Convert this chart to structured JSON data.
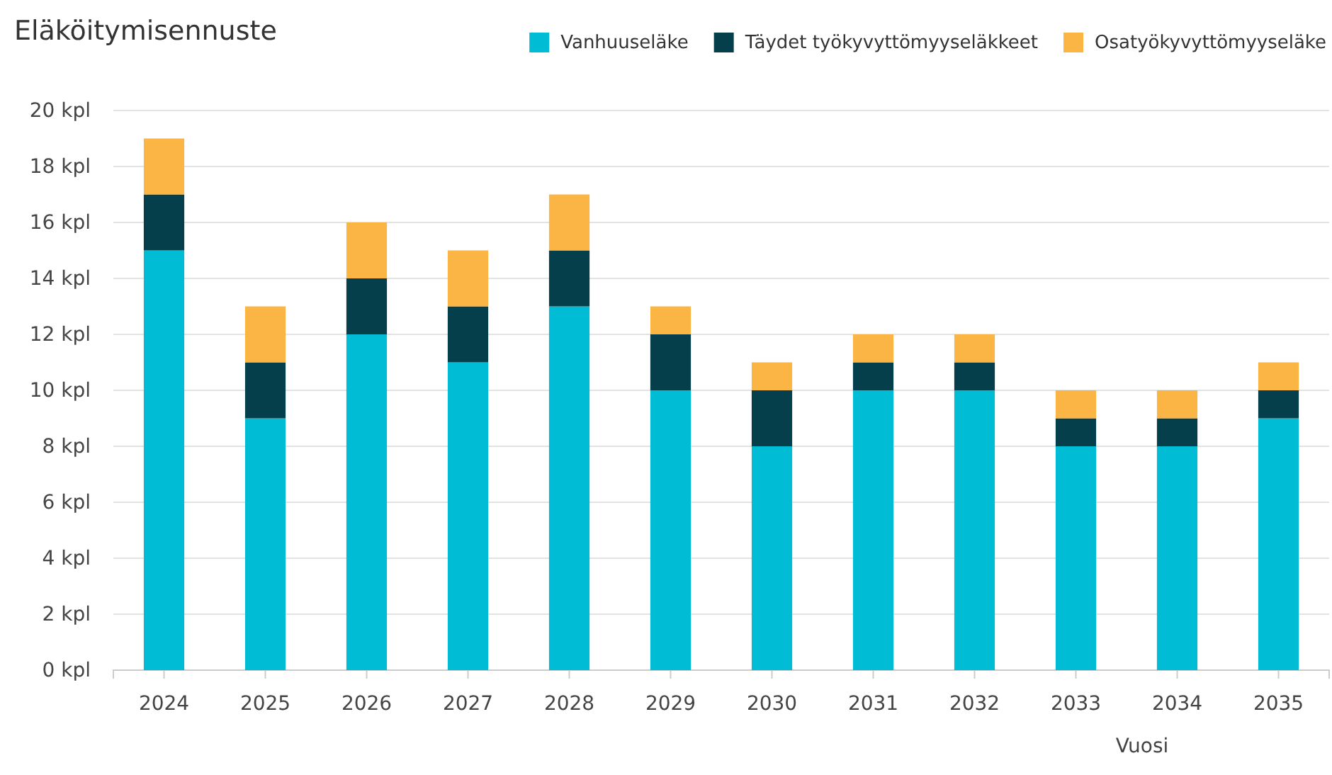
{
  "chart_data": {
    "type": "bar",
    "title": "Eläköitymisennuste",
    "xlabel": "Vuosi",
    "stacked": true,
    "grid": "y",
    "legend": "top right",
    "categories": [
      "2024",
      "2025",
      "2026",
      "2027",
      "2028",
      "2029",
      "2030",
      "2031",
      "2032",
      "2033",
      "2034",
      "2035"
    ],
    "series": [
      {
        "name": "Vanhuuseläke",
        "color": "#00bcd4",
        "values": [
          15,
          9,
          12,
          11,
          13,
          10,
          8,
          10,
          10,
          8,
          8,
          9
        ]
      },
      {
        "name": "Täydet työkyvyttömyyseläkkeet",
        "color": "#063f4c",
        "values": [
          2,
          2,
          2,
          2,
          2,
          2,
          2,
          1,
          1,
          1,
          1,
          1
        ]
      },
      {
        "name": "Osatyökyvyttömyyseläke",
        "color": "#fbb545",
        "values": [
          2,
          2,
          2,
          2,
          2,
          1,
          1,
          1,
          1,
          1,
          1,
          1
        ]
      }
    ],
    "ylim": [
      0,
      20
    ],
    "yticks": [
      {
        "value": 0,
        "label": "0 kpl"
      },
      {
        "value": 2,
        "label": "2 kpl"
      },
      {
        "value": 4,
        "label": "4 kpl"
      },
      {
        "value": 6,
        "label": "6 kpl"
      },
      {
        "value": 8,
        "label": "8 kpl"
      },
      {
        "value": 10,
        "label": "10 kpl"
      },
      {
        "value": 12,
        "label": "12 kpl"
      },
      {
        "value": 14,
        "label": "14 kpl"
      },
      {
        "value": 16,
        "label": "16 kpl"
      },
      {
        "value": 18,
        "label": "18 kpl"
      },
      {
        "value": 20,
        "label": "20 kpl"
      }
    ]
  }
}
